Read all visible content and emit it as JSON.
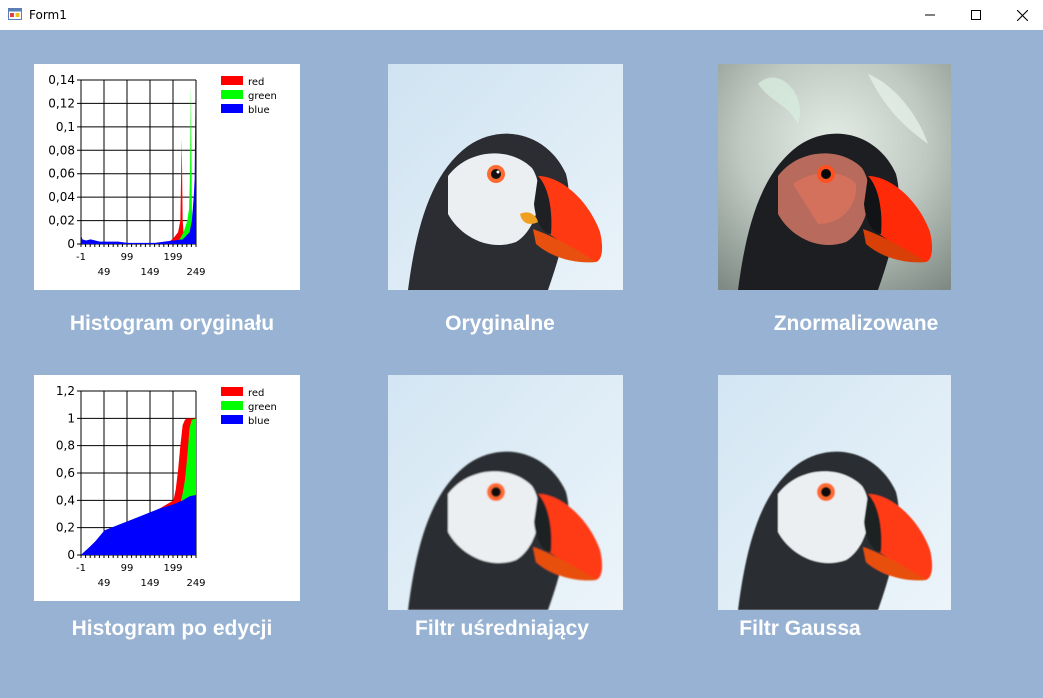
{
  "window": {
    "title": "Form1"
  },
  "icons": {
    "app": "app-form-icon",
    "minimize": "minimize-icon",
    "maximize": "maximize-icon",
    "close": "close-icon"
  },
  "colors": {
    "background": "#97b2d2",
    "red": "#ff0000",
    "green": "#00ff00",
    "blue": "#0000ff"
  },
  "captions": {
    "hist_original": "Histogram oryginału",
    "original": "Oryginalne",
    "normalized": "Znormalizowane",
    "hist_edited": "Histogram po edycji",
    "mean_filter": "Filtr uśredniający",
    "gauss_filter": "Filtr Gaussa"
  },
  "images": {
    "original": "puffin-photo",
    "normalized": "puffin-photo-normalized",
    "mean_filter": "puffin-photo-blurred",
    "gauss_filter": "puffin-photo-gauss"
  },
  "chart_data": [
    {
      "type": "area",
      "title": "",
      "legend": [
        "red",
        "green",
        "blue"
      ],
      "legend_position": "top-right",
      "xlim": [
        -1,
        249
      ],
      "ylim": [
        0,
        0.14
      ],
      "x_ticks_top": [
        "-1",
        "99",
        "199"
      ],
      "x_ticks_bottom": [
        "49",
        "149",
        "249"
      ],
      "y_ticks": [
        "0",
        "0,02",
        "0,04",
        "0,06",
        "0,08",
        "0,1",
        "0,12",
        "0,14"
      ],
      "y_tick_values": [
        0,
        0.02,
        0.04,
        0.06,
        0.08,
        0.1,
        0.12,
        0.14
      ],
      "grid": true,
      "series": [
        {
          "name": "red",
          "x": [
            185,
            200,
            210,
            215,
            218,
            220,
            222,
            224,
            226,
            230,
            235,
            240,
            245,
            249
          ],
          "values": [
            0,
            0.005,
            0.01,
            0.02,
            0.09,
            0.02,
            0.01,
            0.005,
            0.002,
            0.001,
            0,
            0,
            0,
            0
          ]
        },
        {
          "name": "green",
          "x": [
            205,
            215,
            222,
            226,
            230,
            234,
            236,
            238,
            240,
            243,
            246,
            249
          ],
          "values": [
            0,
            0.005,
            0.01,
            0.015,
            0.02,
            0.03,
            0.06,
            0.135,
            0.03,
            0.01,
            0.005,
            0
          ]
        },
        {
          "name": "blue",
          "x": [
            -1,
            2,
            10,
            20,
            30,
            40,
            60,
            80,
            100,
            120,
            140,
            160,
            180,
            200,
            220,
            235,
            240,
            244,
            246,
            248,
            249
          ],
          "values": [
            0.008,
            0.004,
            0.003,
            0.004,
            0.003,
            0.002,
            0.002,
            0.002,
            0.001,
            0.001,
            0.001,
            0.001,
            0.002,
            0.003,
            0.004,
            0.01,
            0.02,
            0.04,
            0.055,
            0.128,
            0.06
          ]
        }
      ]
    },
    {
      "type": "area",
      "title": "",
      "legend": [
        "red",
        "green",
        "blue"
      ],
      "legend_position": "top-right",
      "xlim": [
        -1,
        249
      ],
      "ylim": [
        0,
        1.2
      ],
      "x_ticks_top": [
        "-1",
        "99",
        "199"
      ],
      "x_ticks_bottom": [
        "49",
        "149",
        "249"
      ],
      "y_ticks": [
        "0",
        "0,2",
        "0,4",
        "0,6",
        "0,8",
        "1",
        "1,2"
      ],
      "y_tick_values": [
        0,
        0.2,
        0.4,
        0.6,
        0.8,
        1.0,
        1.2
      ],
      "grid": true,
      "series": [
        {
          "name": "red",
          "x": [
            -1,
            200,
            205,
            210,
            215,
            220,
            225,
            230,
            249
          ],
          "values": [
            0,
            0.4,
            0.48,
            0.62,
            0.8,
            0.95,
            0.99,
            1.0,
            1.0
          ]
        },
        {
          "name": "green",
          "x": [
            -1,
            215,
            220,
            225,
            230,
            235,
            240,
            249
          ],
          "values": [
            0,
            0.38,
            0.45,
            0.55,
            0.72,
            0.93,
            0.99,
            1.0
          ]
        },
        {
          "name": "blue",
          "x": [
            -1,
            5,
            15,
            30,
            50,
            80,
            110,
            140,
            170,
            200,
            220,
            235,
            249
          ],
          "values": [
            0.0,
            0.02,
            0.05,
            0.1,
            0.18,
            0.22,
            0.26,
            0.3,
            0.34,
            0.37,
            0.4,
            0.43,
            0.44
          ]
        }
      ]
    }
  ]
}
